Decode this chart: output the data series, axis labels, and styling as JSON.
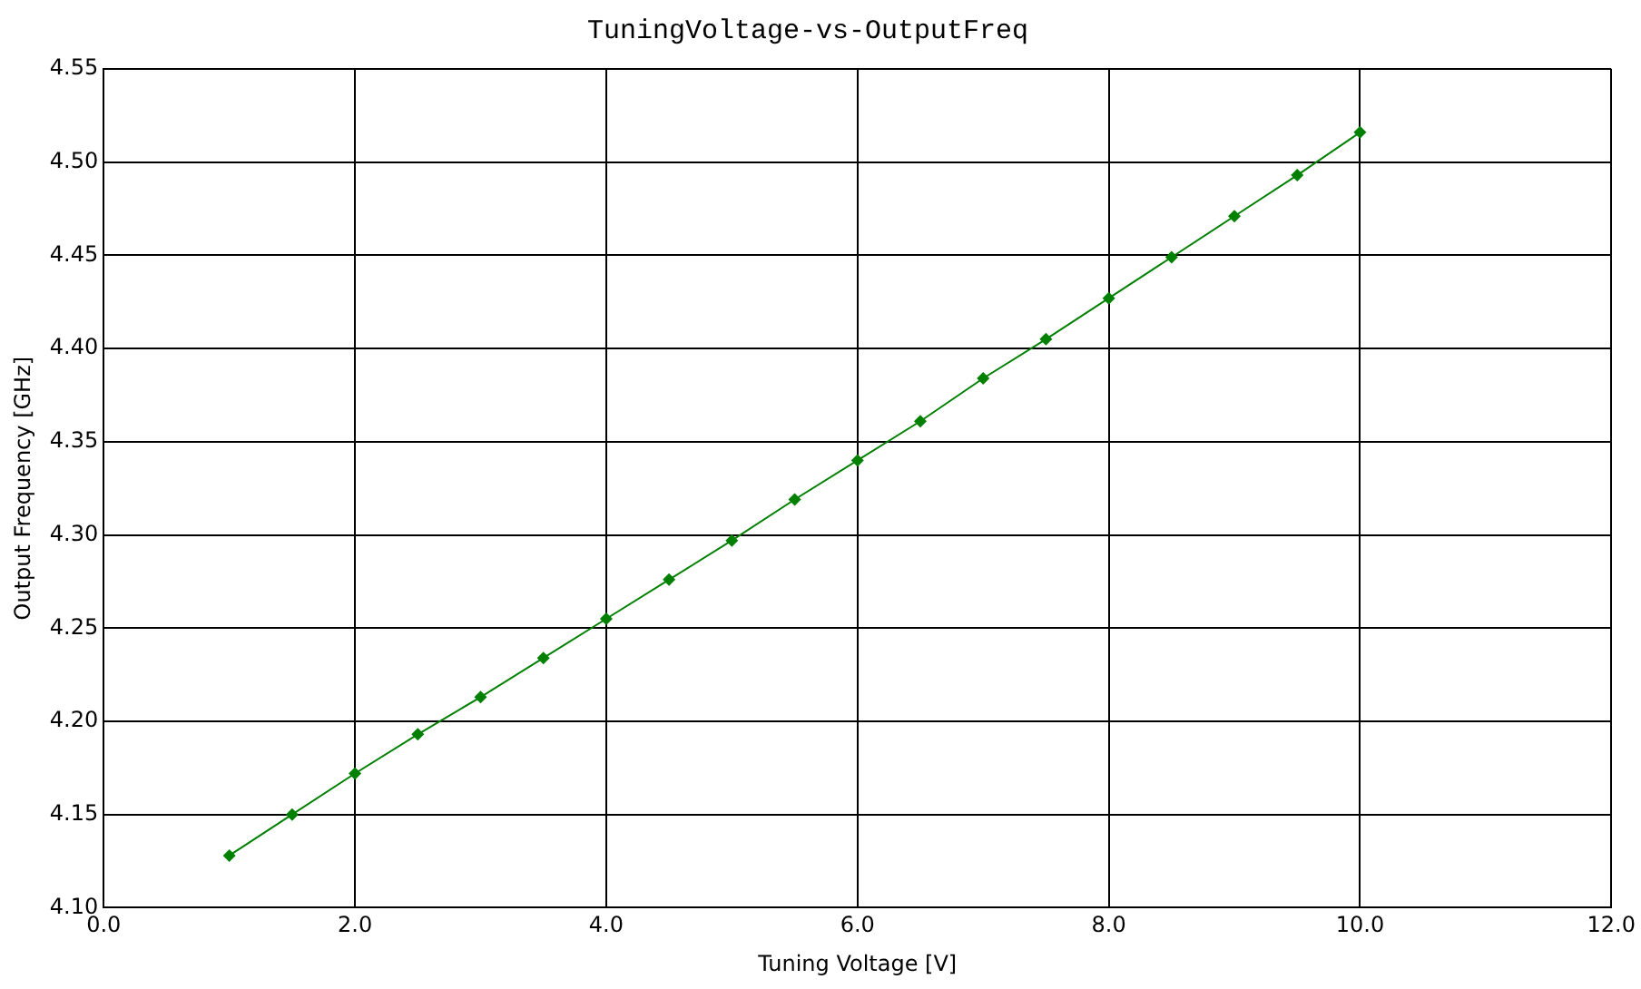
{
  "chart_data": {
    "type": "line",
    "title": "TuningVoltage-vs-OutputFreq",
    "xlabel": "Tuning Voltage [V]",
    "ylabel": "Output Frequency [GHz]",
    "x": [
      1.0,
      1.5,
      2.0,
      2.5,
      3.0,
      3.5,
      4.0,
      4.5,
      5.0,
      5.5,
      6.0,
      6.5,
      7.0,
      7.5,
      8.0,
      8.5,
      9.0,
      9.5,
      10.0
    ],
    "series": [
      {
        "color": "#008000",
        "values": [
          4.128,
          4.15,
          4.172,
          4.193,
          4.213,
          4.234,
          4.255,
          4.276,
          4.297,
          4.319,
          4.34,
          4.361,
          4.384,
          4.405,
          4.427,
          4.449,
          4.471,
          4.493,
          4.516
        ]
      }
    ],
    "xlim": [
      0,
      12
    ],
    "xticks": [
      {
        "value": 0,
        "label": "0.0"
      },
      {
        "value": 2,
        "label": "2.0"
      },
      {
        "value": 4,
        "label": "4.0"
      },
      {
        "value": 6,
        "label": "6.0"
      },
      {
        "value": 8,
        "label": "8.0"
      },
      {
        "value": 10,
        "label": "10.0"
      },
      {
        "value": 12,
        "label": "12.0"
      }
    ],
    "ylim": [
      4.1,
      4.55
    ],
    "yticks": [
      {
        "value": 4.1,
        "label": "4.10"
      },
      4.15,
      {
        "value": 4.2,
        "label": "4.20"
      },
      4.25,
      {
        "value": 4.3,
        "label": "4.30"
      },
      4.35,
      {
        "value": 4.4,
        "label": "4.40"
      },
      4.45,
      {
        "value": 4.5,
        "label": "4.50"
      },
      4.55
    ],
    "grid": true,
    "legend": false,
    "marker": "diamond",
    "line_style": "solid"
  }
}
